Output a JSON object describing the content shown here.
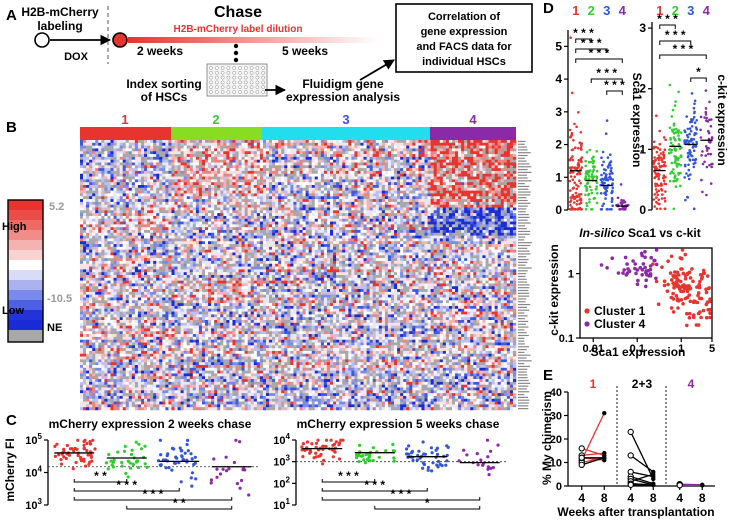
{
  "colors": {
    "cluster1": "#e8342e",
    "cluster2": "#33cc33",
    "cluster3": "#3355dd",
    "cluster4": "#8a2aa6",
    "cluster2_bar": "#88dd22",
    "cluster3_bar": "#22ddee",
    "cluster4_bar": "#8a2aa6",
    "heat_high": "#e8342e",
    "heat_low": "#1a2bd6",
    "heat_ne": "#a8a8a8",
    "grey_text": "#999999"
  },
  "panels": {
    "A": {
      "letter": "A",
      "labeling": [
        "H2B-mCherry",
        "labeling"
      ],
      "dox": "DOX",
      "chase_title": "Chase",
      "dilution": "H2B-mCherry label dilution",
      "weeks_2": "2 weeks",
      "weeks_5": "5 weeks",
      "index_sorting": [
        "Index sorting",
        "of HSCs"
      ],
      "fluidigm": [
        "Fluidigm gene",
        "expression analysis"
      ],
      "correlation_box": [
        "Correlation of",
        "gene expression",
        "and FACS data for",
        "individual HSCs"
      ]
    },
    "B": {
      "letter": "B",
      "cluster_labels": [
        "1",
        "2",
        "3",
        "4"
      ],
      "legend": {
        "high": "High",
        "low": "Low",
        "ne": "NE",
        "max_value": "5.2",
        "min_value": "-10.5"
      }
    },
    "C": {
      "letter": "C"
    },
    "D": {
      "letter": "D"
    },
    "E": {
      "letter": "E"
    }
  },
  "chart_data": [
    {
      "id": "mcherry-2-weeks",
      "type": "scatter",
      "title": "mCherry expression 2 weeks chase",
      "ylabel": "mCherry FI",
      "yscale": "log",
      "ylim": [
        1000,
        100000
      ],
      "yticks": [
        {
          "value": 1000,
          "base": "10",
          "exp": "3"
        },
        {
          "value": 10000,
          "base": "10",
          "exp": "4"
        },
        {
          "value": 100000,
          "base": "10",
          "exp": "5"
        }
      ],
      "categories": [
        "1",
        "2",
        "3",
        "4"
      ],
      "threshold": 15000,
      "series": [
        {
          "name": "Cluster 1",
          "n": 52,
          "median": 40000,
          "spread": 0.22
        },
        {
          "name": "Cluster 2",
          "n": 34,
          "median": 28000,
          "spread": 0.25
        },
        {
          "name": "Cluster 3",
          "n": 44,
          "median": 22000,
          "spread": 0.28
        },
        {
          "name": "Cluster 4",
          "n": 20,
          "median": 15000,
          "spread": 0.34
        }
      ],
      "significance": [
        {
          "from": "1",
          "to": "2",
          "stars": "* *"
        },
        {
          "from": "1",
          "to": "3",
          "stars": "* * *"
        },
        {
          "from": "1",
          "to": "4",
          "stars": "* * *"
        },
        {
          "from": "2",
          "to": "4",
          "stars": "* *"
        }
      ]
    },
    {
      "id": "mcherry-5-weeks",
      "type": "scatter",
      "title": "mCherry expression 5 weeks chase",
      "yscale": "log",
      "ylim": [
        10,
        10000
      ],
      "yticks": [
        {
          "value": 10,
          "base": "10",
          "exp": "1"
        },
        {
          "value": 100,
          "base": "10",
          "exp": "2"
        },
        {
          "value": 1000,
          "base": "10",
          "exp": "3"
        },
        {
          "value": 10000,
          "base": "10",
          "exp": "4"
        }
      ],
      "categories": [
        "1",
        "2",
        "3",
        "4"
      ],
      "threshold": 1000,
      "series": [
        {
          "name": "Cluster 1",
          "n": 48,
          "median": 4000,
          "spread": 0.28
        },
        {
          "name": "Cluster 2",
          "n": 30,
          "median": 2600,
          "spread": 0.3
        },
        {
          "name": "Cluster 3",
          "n": 42,
          "median": 1700,
          "spread": 0.36
        },
        {
          "name": "Cluster 4",
          "n": 18,
          "median": 900,
          "spread": 0.42
        }
      ],
      "significance": [
        {
          "from": "1",
          "to": "2",
          "stars": "* * *"
        },
        {
          "from": "1",
          "to": "3",
          "stars": "* * *"
        },
        {
          "from": "1",
          "to": "4",
          "stars": "* * *"
        },
        {
          "from": "2",
          "to": "4",
          "stars": "*"
        }
      ]
    },
    {
      "id": "sca1-expression",
      "type": "scatter",
      "ylabel": "Sca1 expression",
      "ylim": [
        0,
        5.5
      ],
      "yticks": [
        0,
        1,
        2,
        3,
        4,
        5
      ],
      "categories": [
        "1",
        "2",
        "3",
        "4"
      ],
      "series": [
        {
          "name": "Cluster 1",
          "n": 110,
          "median": 1.2,
          "spread": 0.75
        },
        {
          "name": "Cluster 2",
          "n": 70,
          "median": 0.9,
          "spread": 0.5
        },
        {
          "name": "Cluster 3",
          "n": 80,
          "median": 0.75,
          "spread": 0.45
        },
        {
          "name": "Cluster 4",
          "n": 35,
          "median": 0.12,
          "spread": 0.12
        }
      ],
      "significance": [
        {
          "from": "1",
          "to": "2",
          "stars": "* * *"
        },
        {
          "from": "1",
          "to": "3",
          "stars": "* * *"
        },
        {
          "from": "1",
          "to": "4",
          "stars": "* * *"
        },
        {
          "from": "2",
          "to": "4",
          "stars": "* * *"
        },
        {
          "from": "3",
          "to": "4",
          "stars": "* * *"
        }
      ]
    },
    {
      "id": "ckit-expression",
      "type": "scatter",
      "ylabel": "c-kit expression",
      "ylim": [
        0,
        3.1
      ],
      "yticks": [
        0,
        1,
        2,
        3
      ],
      "categories": [
        "1",
        "2",
        "3",
        "4"
      ],
      "series": [
        {
          "name": "Cluster 1",
          "n": 100,
          "median": 0.65,
          "spread": 0.3
        },
        {
          "name": "Cluster 2",
          "n": 80,
          "median": 1.05,
          "spread": 0.35
        },
        {
          "name": "Cluster 3",
          "n": 90,
          "median": 1.08,
          "spread": 0.32
        },
        {
          "name": "Cluster 4",
          "n": 45,
          "median": 1.15,
          "spread": 0.3
        }
      ],
      "significance": [
        {
          "from": "1",
          "to": "2",
          "stars": "* * *"
        },
        {
          "from": "1",
          "to": "3",
          "stars": "* * *"
        },
        {
          "from": "1",
          "to": "4",
          "stars": "* * *"
        },
        {
          "from": "3",
          "to": "4",
          "stars": "*"
        }
      ]
    },
    {
      "id": "insilico-sca1-vs-ckit",
      "type": "scatter",
      "title_italic": "In-silico",
      "title_rest": " Sca1 vs c-kit",
      "xlabel": "Sca1 expression",
      "ylabel": "c-kit expression",
      "xscale": "log",
      "yscale": "log",
      "xlim": [
        0.005,
        5
      ],
      "ylim": [
        0.1,
        2.5
      ],
      "xticks": [
        0.01,
        0.1,
        1,
        5
      ],
      "xtick_labels": [
        "0.01",
        "0.1",
        "1",
        "5"
      ],
      "yticks": [
        0.1,
        1
      ],
      "ytick_labels": [
        "0.1",
        "1"
      ],
      "series": [
        {
          "name": "Cluster 1",
          "n": 130,
          "x_center": 1.3,
          "x_spread": 0.3,
          "y_center": 0.55,
          "y_spread": 0.22
        },
        {
          "name": "Cluster 4",
          "n": 45,
          "x_center": 0.12,
          "x_spread": 0.3,
          "y_center": 1.1,
          "y_spread": 0.12
        }
      ],
      "legend": [
        "Cluster 1",
        "Cluster 4"
      ]
    },
    {
      "id": "chimerism",
      "type": "line",
      "ylabel": "% My chimerism",
      "xlabel": "Weeks after transplantation",
      "ylim": [
        0,
        40
      ],
      "yticks": [
        0,
        10,
        20,
        30,
        40
      ],
      "group_labels": [
        "1",
        "2+3",
        "4"
      ],
      "x_ticks": [
        "4",
        "8"
      ],
      "groups": [
        {
          "label": "1",
          "lines": [
            {
              "values": [
                11,
                31
              ],
              "color": "red"
            },
            {
              "values": [
                10,
                12
              ],
              "color": "red"
            },
            {
              "values": [
                13,
                14
              ],
              "color": "red"
            },
            {
              "values": [
                12,
                11
              ],
              "color": "red"
            },
            {
              "values": [
                16,
                13
              ],
              "color": "red"
            },
            {
              "values": [
                9,
                12
              ],
              "color": "black"
            },
            {
              "values": [
                12,
                12
              ],
              "color": "black"
            }
          ]
        },
        {
          "label": "2+3",
          "lines": [
            {
              "values": [
                23,
                3
              ],
              "color": "black"
            },
            {
              "values": [
                13,
                6
              ],
              "color": "black"
            },
            {
              "values": [
                6,
                4
              ],
              "color": "black"
            },
            {
              "values": [
                4,
                1
              ],
              "color": "black"
            },
            {
              "values": [
                3,
                0.5
              ],
              "color": "black"
            },
            {
              "values": [
                2,
                5
              ],
              "color": "black"
            },
            {
              "values": [
                1,
                0.5
              ],
              "color": "black"
            },
            {
              "values": [
                0.5,
                0.5
              ],
              "color": "black"
            }
          ]
        },
        {
          "label": "4",
          "lines": [
            {
              "values": [
                0.8,
                0.5
              ],
              "color": "purple"
            },
            {
              "values": [
                0.5,
                0.4
              ],
              "color": "purple"
            },
            {
              "values": [
                0.3,
                0.3
              ],
              "color": "purple"
            }
          ]
        }
      ]
    }
  ]
}
